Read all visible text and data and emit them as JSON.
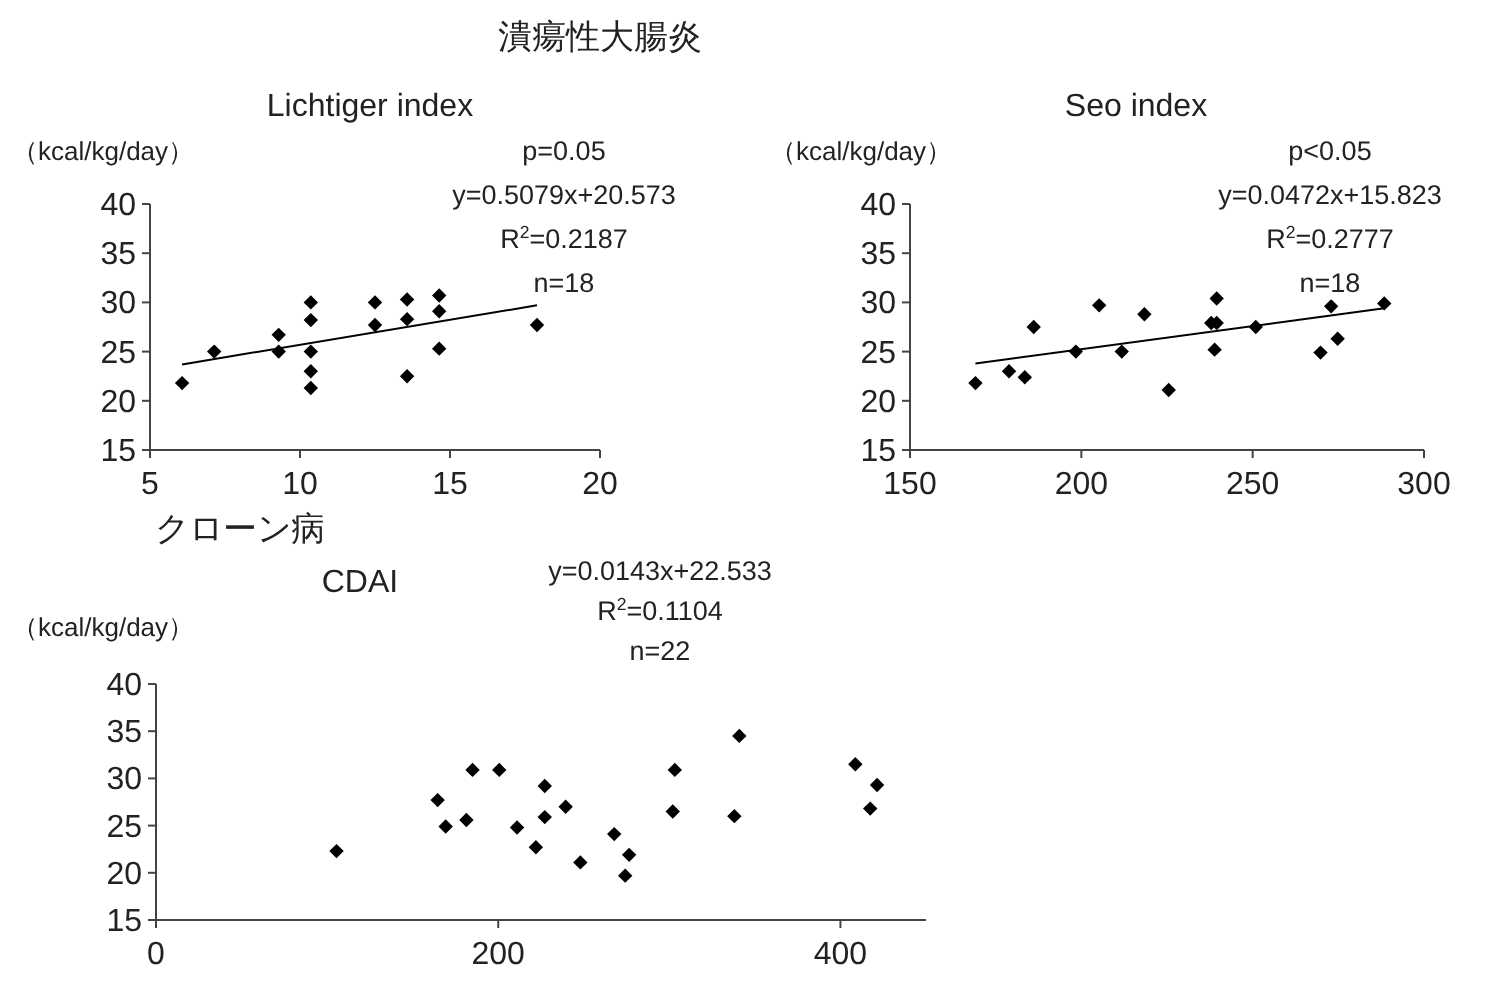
{
  "chart_data": [
    {
      "type": "scatter",
      "title": "潰瘍性大腸炎",
      "subtitle": "Lichtiger index",
      "ylabel": "（kcal/kg/day）",
      "annotations": [
        "p=0.05",
        "y=0.5079x+20.573",
        "R$^{2}$=0.2187",
        "n=18"
      ],
      "xlim": [
        5,
        20
      ],
      "xticks": [
        5,
        10,
        15,
        20
      ],
      "ylim": [
        15,
        40
      ],
      "yticks": [
        15,
        20,
        25,
        30,
        35,
        40
      ],
      "marker": "diamond",
      "series": [
        {
          "type": "scatter",
          "color": "#000000",
          "x": [
            6.07,
            7.14,
            9.29,
            9.29,
            10.36,
            10.36,
            10.36,
            10.36,
            10.36,
            12.5,
            12.5,
            13.57,
            13.57,
            13.57,
            14.64,
            14.64,
            14.64,
            17.9
          ],
          "values": [
            21.8,
            25,
            26.7,
            25,
            30,
            28.2,
            25,
            23,
            21.3,
            30,
            27.7,
            30.3,
            28.3,
            22.5,
            30.7,
            29.1,
            25.3,
            27.7
          ]
        },
        {
          "type": "line",
          "color": "#000000",
          "marker": "none",
          "x": [
            6.07,
            17.9
          ],
          "values": [
            23.7,
            29.7
          ]
        }
      ]
    },
    {
      "type": "scatter",
      "title": "Seo index",
      "ylabel": "（kcal/kg/day）",
      "annotations": [
        "p<0.05",
        "y=0.0472x+15.823",
        "R$^{2}$=0.2777",
        "n=18"
      ],
      "xlim": [
        150,
        300
      ],
      "xticks": [
        150,
        200,
        250,
        300
      ],
      "ylim": [
        15,
        40
      ],
      "yticks": [
        15,
        20,
        25,
        30,
        35,
        40
      ],
      "marker": "diamond",
      "series": [
        {
          "type": "scatter",
          "color": "#000000",
          "x": [
            169.1,
            178.9,
            183.5,
            186.1,
            198.4,
            205.2,
            211.8,
            218.4,
            225.5,
            237.9,
            239.5,
            239.5,
            238.9,
            250.9,
            269.8,
            272.9,
            274.8,
            288.4
          ],
          "values": [
            21.8,
            23.0,
            22.4,
            27.5,
            25.0,
            29.7,
            25.0,
            28.8,
            21.1,
            27.9,
            27.9,
            30.4,
            25.2,
            27.5,
            24.9,
            29.6,
            26.3,
            29.9
          ]
        },
        {
          "type": "line",
          "color": "#000000",
          "marker": "none",
          "x": [
            169.1,
            288.4
          ],
          "values": [
            23.8,
            29.4
          ]
        }
      ]
    },
    {
      "type": "scatter",
      "title": "クローン病",
      "subtitle": "CDAI",
      "ylabel": "（kcal/kg/day）",
      "annotations": [
        "y=0.0143x+22.533",
        "R$^{2}$=0.1104",
        "n=22"
      ],
      "xlim": [
        0,
        450
      ],
      "xticks": [
        0,
        200,
        400
      ],
      "ylim": [
        15,
        40
      ],
      "yticks": [
        15,
        20,
        25,
        30,
        35,
        40
      ],
      "marker": "diamond",
      "series": [
        {
          "type": "scatter",
          "color": "#000000",
          "x": [
            105.5,
            164.6,
            169.3,
            181.4,
            185,
            200.6,
            211,
            222,
            227.2,
            227.2,
            239.4,
            248,
            267.8,
            276.5,
            274.2,
            303.2,
            302,
            340.9,
            338,
            408.7,
            417.4,
            421.4
          ],
          "values": [
            22.3,
            27.7,
            24.9,
            25.6,
            30.9,
            30.9,
            24.8,
            22.7,
            29.2,
            25.9,
            27.0,
            21.1,
            24.1,
            21.9,
            19.7,
            30.9,
            26.5,
            34.5,
            26.0,
            31.5,
            26.8,
            29.3
          ]
        }
      ]
    }
  ]
}
